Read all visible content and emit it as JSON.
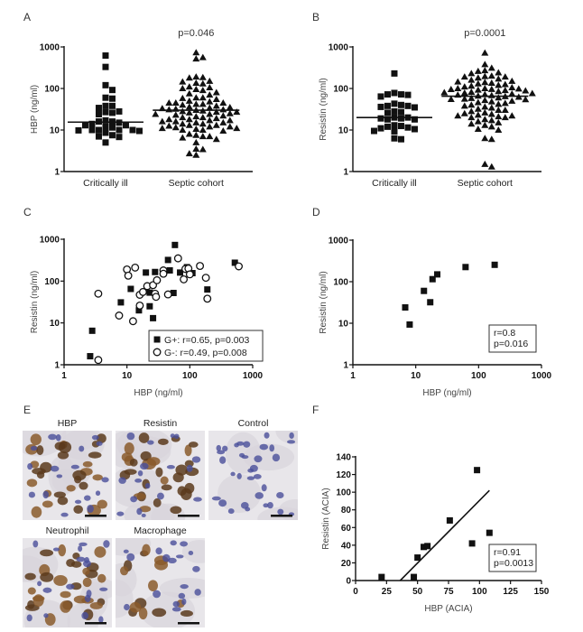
{
  "figure": {
    "panels": {
      "A": {
        "label": "A"
      },
      "B": {
        "label": "B"
      },
      "C": {
        "label": "C"
      },
      "D": {
        "label": "D"
      },
      "E": {
        "label": "E",
        "images": [
          {
            "title": "HBP",
            "kind": "hbp",
            "scale_bar": true
          },
          {
            "title": "Resistin",
            "kind": "resistin",
            "scale_bar": true
          },
          {
            "title": "Control",
            "kind": "control",
            "scale_bar": true
          },
          {
            "title": "Neutrophil",
            "kind": "neutrophil",
            "scale_bar": true
          },
          {
            "title": "Macrophage",
            "kind": "macrophage",
            "scale_bar": true
          }
        ]
      },
      "F": {
        "label": "F"
      }
    },
    "colors": {
      "marker": "#111111",
      "axis": "#111111",
      "stain_brown": "#8a5a2b",
      "stain_blue": "#4a4f9a",
      "tissue_bg": "#e8e6ea"
    }
  },
  "chart_data": [
    {
      "id": "A",
      "type": "scatter",
      "title": "",
      "annotation": "p=0.046",
      "ylabel": "HBP (ng/ml)",
      "xlabel": "",
      "yscale": "log",
      "ylim": [
        1,
        1000
      ],
      "yticks": [
        "1",
        "10",
        "100",
        "1000"
      ],
      "categories": [
        "Critically ill",
        "Septic cohort"
      ],
      "series": [
        {
          "name": "Critically ill",
          "marker": "square",
          "median": 15.5,
          "values": [
            620,
            330,
            120,
            92,
            60,
            57,
            38,
            38,
            34,
            28,
            26,
            24,
            27,
            17,
            16,
            15,
            13,
            14,
            16,
            12,
            13,
            11.5,
            10,
            10,
            10,
            9.5,
            9.8,
            10,
            8.6,
            7.5,
            7,
            6.8,
            5
          ]
        },
        {
          "name": "Septic cohort",
          "marker": "triangle",
          "median": 30,
          "values": [
            730,
            520,
            560,
            190,
            185,
            180,
            150,
            145,
            130,
            135,
            110,
            100,
            105,
            95,
            90,
            80,
            75,
            70,
            60,
            58,
            60,
            55,
            50,
            48,
            45,
            45,
            45,
            42,
            42,
            40,
            38,
            36,
            35,
            34,
            33,
            32,
            31,
            31,
            30,
            29,
            28,
            27,
            27,
            26,
            25,
            24,
            24,
            23,
            22,
            21,
            20,
            20,
            19,
            18,
            18,
            17,
            17,
            16,
            16,
            15,
            15,
            14,
            14,
            13,
            13,
            12.5,
            12,
            12,
            11.5,
            11,
            11,
            10.5,
            10,
            10,
            9.5,
            8,
            7.5,
            7,
            7,
            6.5,
            6,
            5,
            3.5,
            3.4,
            2.7,
            2.5
          ]
        }
      ]
    },
    {
      "id": "B",
      "type": "scatter",
      "title": "",
      "annotation": "p=0.0001",
      "ylabel": "Resistin (ng/ml)",
      "xlabel": "",
      "yscale": "log",
      "ylim": [
        1,
        1000
      ],
      "yticks": [
        "1",
        "10",
        "100",
        "1000"
      ],
      "categories": [
        "Critically ill",
        "Septic cohort"
      ],
      "series": [
        {
          "name": "Critically ill",
          "marker": "square",
          "median": 20,
          "values": [
            230,
            78,
            72,
            64,
            70,
            72,
            43,
            38,
            36,
            35,
            38,
            40,
            28,
            26,
            20,
            19,
            18,
            18,
            19,
            20,
            27,
            13,
            12,
            11,
            9.5,
            9.3,
            10.5,
            11.5,
            12.5,
            6,
            6.3
          ]
        },
        {
          "name": "Septic cohort",
          "marker": "triangle",
          "median": 65,
          "values": [
            720,
            380,
            310,
            270,
            260,
            240,
            230,
            200,
            195,
            190,
            190,
            180,
            170,
            160,
            150,
            145,
            140,
            135,
            130,
            125,
            120,
            115,
            110,
            105,
            100,
            100,
            98,
            96,
            95,
            92,
            90,
            88,
            85,
            82,
            80,
            78,
            76,
            74,
            72,
            70,
            68,
            66,
            64,
            62,
            60,
            58,
            56,
            55,
            54,
            52,
            50,
            48,
            46,
            44,
            42,
            40,
            38,
            36,
            34,
            32,
            30,
            30,
            28,
            26,
            25,
            24,
            23,
            22,
            22,
            21,
            20,
            20,
            18,
            17,
            16,
            15,
            14,
            13,
            12,
            10.5,
            10,
            6.3,
            6,
            1.5,
            1.3
          ]
        }
      ]
    },
    {
      "id": "C",
      "type": "scatter",
      "title": "",
      "xlabel": "HBP (ng/ml)",
      "ylabel": "Resistin (ng/ml)",
      "xscale": "log",
      "yscale": "log",
      "xlim": [
        1,
        1000
      ],
      "ylim": [
        1,
        1000
      ],
      "xticks": [
        "1",
        "10",
        "100",
        "1000"
      ],
      "yticks": [
        "1",
        "10",
        "100",
        "1000"
      ],
      "legend": {
        "position": "bottom-right",
        "entries": [
          "G+: r=0.65, p=0.003",
          "G-: r=0.49, p=0.008"
        ]
      },
      "series": [
        {
          "name": "G+: r=0.65, p=0.003",
          "marker": "square",
          "points": [
            [
              2.6,
              1.6
            ],
            [
              2.8,
              6.5
            ],
            [
              8,
              31
            ],
            [
              11.5,
              65
            ],
            [
              15.5,
              20
            ],
            [
              20,
              160
            ],
            [
              23,
              53
            ],
            [
              23,
              25
            ],
            [
              26,
              13
            ],
            [
              28,
              165
            ],
            [
              45,
              320
            ],
            [
              48,
              180
            ],
            [
              55,
              52
            ],
            [
              58,
              730
            ],
            [
              70,
              160
            ],
            [
              90,
              215
            ],
            [
              110,
              155
            ],
            [
              190,
              63
            ],
            [
              520,
              275
            ]
          ]
        },
        {
          "name": "G-: r=0.49, p=0.008",
          "marker": "circle",
          "points": [
            [
              3.5,
              1.3
            ],
            [
              3.5,
              50
            ],
            [
              7.5,
              15
            ],
            [
              10,
              190
            ],
            [
              10.5,
              135
            ],
            [
              12.5,
              11
            ],
            [
              13.5,
              210
            ],
            [
              16,
              26
            ],
            [
              16,
              47
            ],
            [
              18,
              55
            ],
            [
              21,
              76
            ],
            [
              26,
              80
            ],
            [
              28,
              50
            ],
            [
              29,
              42
            ],
            [
              30,
              105
            ],
            [
              38,
              180
            ],
            [
              38,
              150
            ],
            [
              45,
              48
            ],
            [
              65,
              350
            ],
            [
              80,
              110
            ],
            [
              85,
              195
            ],
            [
              95,
              200
            ],
            [
              100,
              145
            ],
            [
              145,
              230
            ],
            [
              180,
              120
            ],
            [
              190,
              38
            ],
            [
              600,
              225
            ]
          ]
        }
      ]
    },
    {
      "id": "D",
      "type": "scatter",
      "title": "",
      "xlabel": "HBP (ng/ml)",
      "ylabel": "Resistin (ng/ml)",
      "xscale": "log",
      "yscale": "log",
      "xlim": [
        1,
        1000
      ],
      "ylim": [
        1,
        1000
      ],
      "xticks": [
        "1",
        "10",
        "100",
        "1000"
      ],
      "yticks": [
        "1",
        "10",
        "100",
        "1000"
      ],
      "annotation": [
        "r=0.8",
        "p=0.016"
      ],
      "series": [
        {
          "name": "samples",
          "marker": "square",
          "points": [
            [
              6.8,
              24
            ],
            [
              8,
              9.3
            ],
            [
              13.5,
              60
            ],
            [
              17,
              32
            ],
            [
              18.5,
              115
            ],
            [
              22,
              150
            ],
            [
              62,
              225
            ],
            [
              180,
              255
            ]
          ]
        }
      ]
    },
    {
      "id": "F",
      "type": "scatter",
      "title": "",
      "xlabel": "HBP (ACIA)",
      "ylabel": "Resistin (ACIA)",
      "xscale": "linear",
      "yscale": "linear",
      "xlim": [
        0,
        150
      ],
      "ylim": [
        0,
        140
      ],
      "xticks": [
        "0",
        "25",
        "50",
        "75",
        "100",
        "125",
        "150"
      ],
      "yticks": [
        "0",
        "20",
        "40",
        "60",
        "80",
        "100",
        "120",
        "140"
      ],
      "annotation": [
        "r=0.91",
        "p=0.0013"
      ],
      "series": [
        {
          "name": "samples",
          "marker": "square",
          "points": [
            [
              21,
              4
            ],
            [
              47,
              4
            ],
            [
              50,
              26
            ],
            [
              55,
              38
            ],
            [
              58,
              39
            ],
            [
              76,
              68
            ],
            [
              94,
              42
            ],
            [
              98,
              125
            ],
            [
              108,
              54
            ]
          ]
        }
      ],
      "regression_line": {
        "from": [
          36,
          0
        ],
        "to": [
          108,
          102
        ]
      }
    }
  ]
}
